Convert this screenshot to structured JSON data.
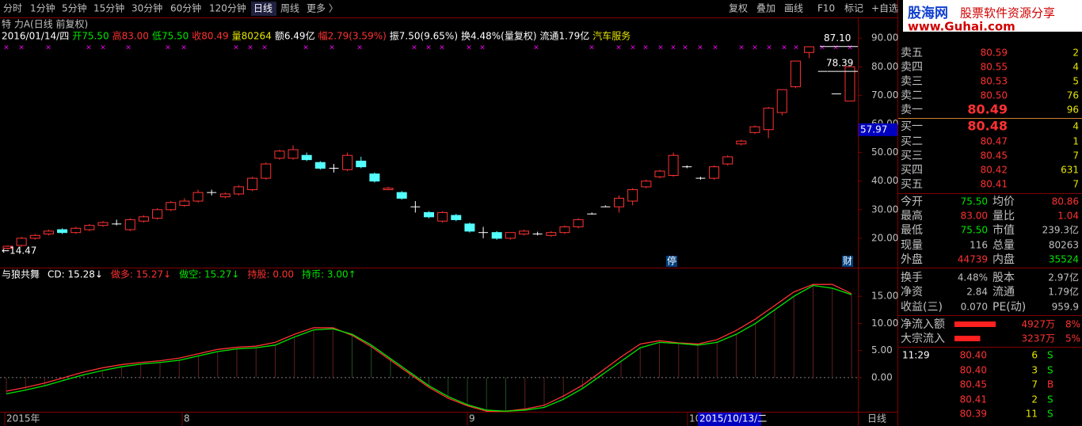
{
  "toolbar": {
    "tabs": [
      "分时",
      "1分钟",
      "5分钟",
      "15分钟",
      "30分钟",
      "60分钟",
      "120分钟",
      "日线",
      "周线",
      "更多 〉"
    ],
    "active": 7,
    "buttons": [
      "复权",
      "叠加",
      "画线",
      "F10",
      "标记",
      "+自选"
    ]
  },
  "logo": {
    "brand": "股海网",
    "slogan": "股票软件资源分享",
    "url": "www.Guhai.com"
  },
  "info": {
    "name": "特 力A(日线 前复权)",
    "items": [
      "2016/01/14/四",
      "开75.50",
      "高83.00",
      "低75.50",
      "收80.49",
      "量80264",
      "额6.49亿",
      "幅2.79(3.59%)",
      "振7.50(9.65%)",
      "换4.48%(量复权)",
      "流通1.79亿",
      "汽车服务"
    ],
    "colors": [
      "#ffffff",
      "#00e600",
      "#ff3232",
      "#00e600",
      "#ff3232",
      "#e6e600",
      "#ffffff",
      "#ff3232",
      "#ffffff",
      "#ffffff",
      "#ffffff",
      "#e6e600"
    ]
  },
  "kline": {
    "ylim": [
      10,
      92
    ],
    "yticks": [
      {
        "value": 20,
        "label": "20.00"
      },
      {
        "value": 30,
        "label": "30.00"
      },
      {
        "value": 40,
        "label": "40.00"
      },
      {
        "value": 50,
        "label": "50.00"
      },
      {
        "value": 60,
        "label": "60.00"
      },
      {
        "value": 70,
        "label": "70.00"
      },
      {
        "value": 80,
        "label": "80.00"
      },
      {
        "value": 90,
        "label": "90.00"
      }
    ],
    "up_color": "#ff3232",
    "down_color": "#54ffff",
    "doji_color": "#ffffff",
    "candles": [
      [
        16.5,
        17.5,
        16,
        17.2
      ],
      [
        17.5,
        20.5,
        17,
        20
      ],
      [
        20,
        21.5,
        19.5,
        21
      ],
      [
        21.5,
        23,
        21,
        22.5
      ],
      [
        23,
        23.5,
        21.5,
        22
      ],
      [
        22,
        24,
        21.5,
        23.5
      ],
      [
        23,
        25,
        22.5,
        24.5
      ],
      [
        24.5,
        26,
        24,
        25.5
      ],
      [
        25,
        26.5,
        24.5,
        25
      ],
      [
        23,
        27,
        22.5,
        26.5
      ],
      [
        26,
        28,
        25.5,
        27.5
      ],
      [
        27,
        30.5,
        26.5,
        30
      ],
      [
        30,
        33,
        29.5,
        32.5
      ],
      [
        31.5,
        34,
        31,
        33
      ],
      [
        33,
        37,
        32.5,
        36
      ],
      [
        36,
        37,
        35,
        36
      ],
      [
        34.5,
        36,
        34,
        35.5
      ],
      [
        35.5,
        38.5,
        35,
        38
      ],
      [
        37,
        41.5,
        36.5,
        41
      ],
      [
        41,
        46.5,
        40.5,
        46
      ],
      [
        48,
        51,
        47.5,
        50.5
      ],
      [
        48,
        52.5,
        47.5,
        51
      ],
      [
        49,
        50,
        47,
        47.5
      ],
      [
        46.5,
        47,
        44,
        44.5
      ],
      [
        44.5,
        46,
        43,
        44.5
      ],
      [
        44,
        50,
        43.5,
        49
      ],
      [
        47,
        48.5,
        44.5,
        45
      ],
      [
        42.5,
        43,
        39.5,
        40
      ],
      [
        37,
        38,
        36.8,
        37.5
      ],
      [
        36,
        36.5,
        33.5,
        34
      ],
      [
        31,
        33,
        29,
        31
      ],
      [
        29,
        29.5,
        27,
        27.5
      ],
      [
        26,
        29.5,
        25.5,
        29
      ],
      [
        28,
        28.5,
        26,
        26.5
      ],
      [
        25,
        25.5,
        22,
        22.5
      ],
      [
        22,
        24,
        20,
        22
      ],
      [
        22,
        22.5,
        19.5,
        20
      ],
      [
        20,
        22,
        19.5,
        22
      ],
      [
        21.5,
        23,
        21,
        22.5
      ],
      [
        21.5,
        22.3,
        21,
        21.5
      ],
      [
        21,
        22.5,
        20.5,
        22
      ],
      [
        22,
        24.5,
        21.5,
        24
      ],
      [
        24,
        27,
        23.5,
        26.5
      ],
      [
        28.5,
        29,
        28.3,
        28.5
      ],
      [
        31,
        31.5,
        31,
        31
      ],
      [
        31,
        35,
        29,
        34
      ],
      [
        33,
        37.5,
        31.5,
        37
      ],
      [
        38,
        40.5,
        37.5,
        40
      ],
      [
        41.5,
        44,
        41,
        43.5
      ],
      [
        42,
        50,
        41.5,
        49
      ],
      [
        45,
        45.5,
        44.5,
        45
      ],
      [
        41,
        41.5,
        40.5,
        41
      ],
      [
        41,
        45.5,
        40.5,
        45
      ],
      [
        46,
        49,
        45.5,
        48.5
      ],
      [
        53,
        54.5,
        52.5,
        54
      ],
      [
        57,
        59.5,
        56.5,
        59
      ],
      [
        58,
        66,
        55,
        65.5
      ],
      [
        64,
        72,
        63,
        72
      ],
      [
        73,
        82,
        72.5,
        82
      ],
      [
        85,
        87.1,
        83,
        87
      ],
      [
        78.39,
        78.39,
        78.39,
        78.39
      ],
      [
        70.5,
        70.5,
        70.5,
        70.5
      ],
      [
        68,
        80,
        68,
        80
      ]
    ],
    "annotations": [
      {
        "value": 87.1,
        "label": "87.10"
      },
      {
        "value": 78.39,
        "label": "78.39"
      },
      {
        "value": 14.47,
        "label": "←14.47"
      }
    ],
    "cursor_price": {
      "value": 57.97,
      "label": "57.97"
    },
    "markers": [
      "停",
      "财"
    ]
  },
  "indicator": {
    "labels": [
      "与狼共舞",
      "CD: 15.28↓",
      "做多: 15.27↓",
      "做空: 15.27↓",
      "持股: 0.00",
      "持币: 3.00↑"
    ],
    "label_colors": [
      "#ffffff",
      "#ffffff",
      "#ff3232",
      "#00e600",
      "#ff3232",
      "#00e600"
    ],
    "ylim": [
      -6.3,
      20
    ],
    "yticks": [
      {
        "value": 0,
        "label": "0.00"
      },
      {
        "value": 5,
        "label": "5.00"
      },
      {
        "value": 10,
        "label": "10.00"
      },
      {
        "value": 15,
        "label": "15.00"
      }
    ],
    "series": [
      {
        "color": "#ff3232",
        "values": [
          -2.5,
          -1.8,
          -1,
          0,
          1,
          1.8,
          2.4,
          2.8,
          3.1,
          3.6,
          4.4,
          5.2,
          5.6,
          5.8,
          6.5,
          8,
          9.2,
          9.2,
          7.8,
          5.7,
          3.2,
          0.7,
          -1.8,
          -3.8,
          -5.2,
          -6.2,
          -6.2,
          -5.8,
          -5.1,
          -3.4,
          -1.4,
          1.2,
          3.8,
          6.2,
          6.8,
          6.4,
          6.2,
          7,
          8.7,
          10.8,
          13.3,
          15.8,
          17.2,
          17.2,
          15.5
        ]
      },
      {
        "color": "#00e600",
        "values": [
          -3,
          -2.3,
          -1.5,
          -0.5,
          0.5,
          1.3,
          2,
          2.5,
          2.8,
          3.2,
          4,
          4.8,
          5.3,
          5.5,
          6,
          7.5,
          8.8,
          9,
          8,
          6,
          3.5,
          1,
          -1.5,
          -3.5,
          -5,
          -6,
          -6.2,
          -6,
          -5.5,
          -4,
          -2,
          0.5,
          3,
          5.5,
          6.5,
          6.3,
          6,
          6.5,
          8,
          10,
          12.5,
          15,
          17,
          16.5,
          15.3
        ]
      }
    ]
  },
  "date_axis": {
    "labels": [
      "2015年",
      "8",
      "9",
      "10"
    ],
    "cursor": "2015/10/13/二",
    "period": "日线"
  },
  "order_book": {
    "asks": [
      {
        "label": "卖五",
        "price": "80.59",
        "volume": "2"
      },
      {
        "label": "卖四",
        "price": "80.55",
        "volume": "4"
      },
      {
        "label": "卖三",
        "price": "80.53",
        "volume": "5"
      },
      {
        "label": "卖二",
        "price": "80.50",
        "volume": "76"
      },
      {
        "label": "卖一",
        "price": "80.49",
        "volume": "96"
      }
    ],
    "bids": [
      {
        "label": "买一",
        "price": "80.48",
        "volume": "4"
      },
      {
        "label": "买二",
        "price": "80.47",
        "volume": "1"
      },
      {
        "label": "买三",
        "price": "80.45",
        "volume": "7"
      },
      {
        "label": "买四",
        "price": "80.42",
        "volume": "631"
      },
      {
        "label": "买五",
        "price": "80.41",
        "volume": "7"
      }
    ]
  },
  "stats": [
    [
      "今开",
      "75.50",
      "均价",
      "80.86"
    ],
    [
      "最高",
      "83.00",
      "量比",
      "1.04"
    ],
    [
      "最低",
      "75.50",
      "市值",
      "239.3亿"
    ],
    [
      "现量",
      "116",
      "总量",
      "80263"
    ],
    [
      "外盘",
      "44739",
      "内盘",
      "35524"
    ]
  ],
  "stats2": [
    [
      "换手",
      "4.48%",
      "股本",
      "2.97亿"
    ],
    [
      "净资",
      "2.84",
      "流通",
      "1.79亿"
    ],
    [
      "收益(三)",
      "0.070",
      "PE(动)",
      "959.9"
    ]
  ],
  "flows": [
    {
      "label": "净流入额",
      "amount": "4927万",
      "pct": "8%",
      "share": 8
    },
    {
      "label": "大宗流入",
      "amount": "3237万",
      "pct": "5%",
      "share": 5
    }
  ],
  "trades": [
    {
      "time": "11:29",
      "price": "80.40",
      "volume": "6",
      "side": "S"
    },
    {
      "price": "80.40",
      "volume": "3",
      "side": "S"
    },
    {
      "price": "80.45",
      "volume": "7",
      "side": "B"
    },
    {
      "price": "80.41",
      "volume": "2",
      "side": "S"
    },
    {
      "price": "80.39",
      "volume": "11",
      "side": "S"
    }
  ]
}
